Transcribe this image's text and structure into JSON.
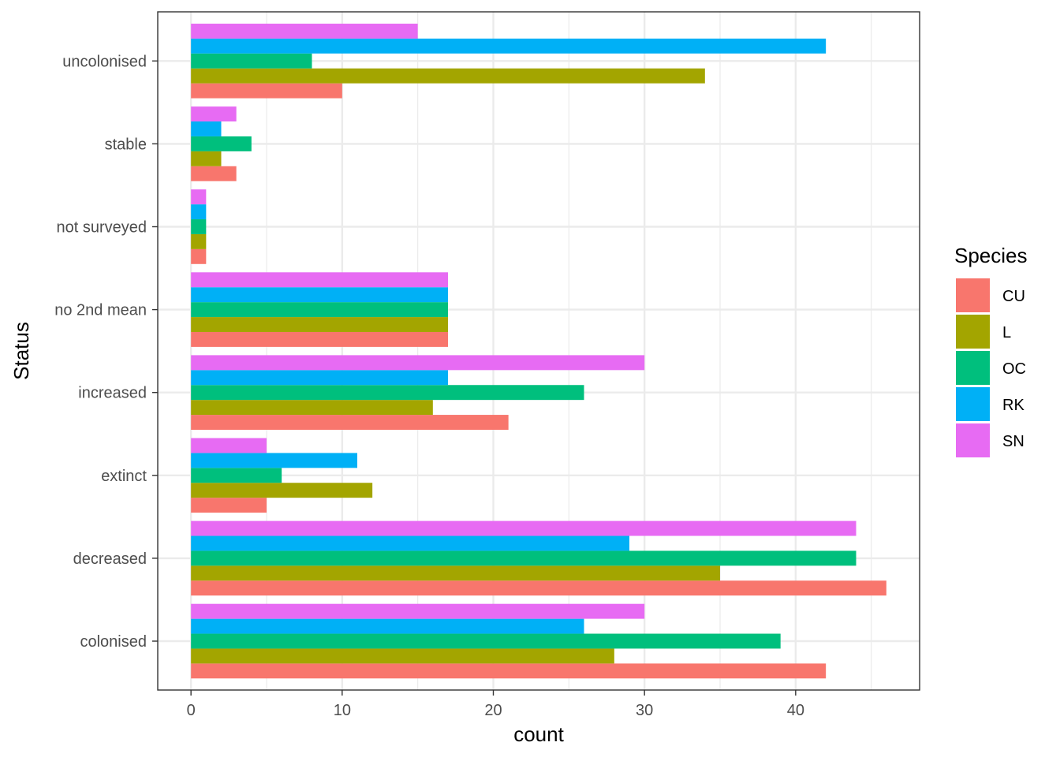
{
  "chart_data": {
    "type": "bar",
    "orientation": "horizontal",
    "xlabel": "count",
    "ylabel": "Status",
    "xlim": [
      -2.2,
      48.2
    ],
    "x_ticks": [
      0,
      10,
      20,
      30,
      40
    ],
    "grid": true,
    "legend": {
      "title": "Species",
      "position": "right"
    },
    "categories": [
      "colonised",
      "decreased",
      "extinct",
      "increased",
      "no 2nd mean",
      "not surveyed",
      "stable",
      "uncolonised"
    ],
    "series": [
      {
        "name": "CU",
        "color": "#F8766D",
        "values": [
          42,
          46,
          5,
          21,
          17,
          1,
          3,
          10
        ]
      },
      {
        "name": "L",
        "color": "#A3A500",
        "values": [
          28,
          35,
          12,
          16,
          17,
          1,
          2,
          34
        ]
      },
      {
        "name": "OC",
        "color": "#00BF7D",
        "values": [
          39,
          44,
          6,
          26,
          17,
          1,
          4,
          8
        ]
      },
      {
        "name": "RK",
        "color": "#00B0F6",
        "values": [
          26,
          29,
          11,
          17,
          17,
          1,
          2,
          42
        ]
      },
      {
        "name": "SN",
        "color": "#E76BF3",
        "values": [
          30,
          44,
          5,
          30,
          17,
          1,
          3,
          15
        ]
      }
    ]
  }
}
